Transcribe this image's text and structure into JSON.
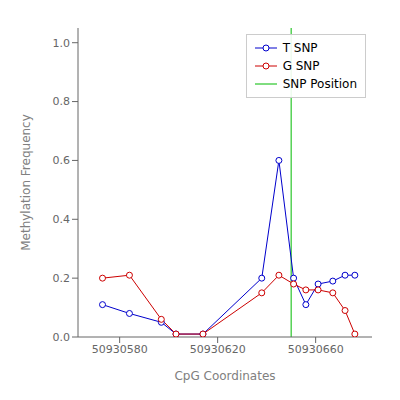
{
  "chart_data": {
    "type": "line",
    "xlabel": "CpG Coordinates",
    "ylabel": "Methylation Frequency",
    "x": [
      50930573,
      50930584,
      50930597,
      50930603,
      50930614,
      50930638,
      50930645,
      50930651,
      50930656,
      50930661,
      50930667,
      50930672,
      50930676
    ],
    "series": [
      {
        "name": "T SNP",
        "color": "#0000CC",
        "marker": "circle",
        "values": [
          0.11,
          0.08,
          0.05,
          0.01,
          0.01,
          0.2,
          0.6,
          0.2,
          0.11,
          0.18,
          0.19,
          0.21,
          0.21
        ]
      },
      {
        "name": "G SNP",
        "color": "#CC0000",
        "marker": "circle",
        "values": [
          0.2,
          0.21,
          0.06,
          0.01,
          0.01,
          0.15,
          0.21,
          0.18,
          0.16,
          0.16,
          0.15,
          0.09,
          0.01
        ]
      }
    ],
    "vline": {
      "name": "SNP Position",
      "x": 50930650,
      "color": "#00BB00"
    },
    "xlim": [
      50930563,
      50930683
    ],
    "xticks": [
      50930580,
      50930620,
      50930660
    ],
    "ylim": [
      0.0,
      1.05
    ],
    "yticks": [
      {
        "value": 0.0,
        "label": "0.0"
      },
      0.2,
      0.4,
      0.6,
      0.8,
      {
        "value": 1.0,
        "label": "1.0"
      }
    ],
    "grid": false,
    "legend": "upper right"
  }
}
